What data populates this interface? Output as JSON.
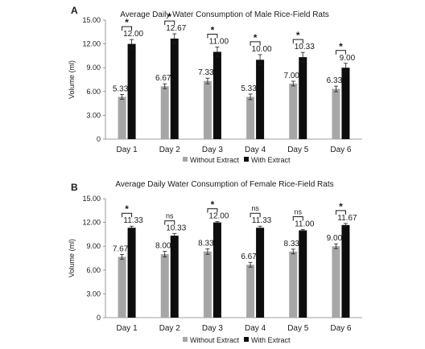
{
  "colors": {
    "without_extract": "#a6a6a6",
    "with_extract": "#0d0d0d",
    "axis": "#808080",
    "text": "#1a1a1a"
  },
  "chart_data": [
    {
      "panel_label": "A",
      "type": "bar",
      "title": "Average Daily Water Consumption of Male Rice-Field Rats",
      "ylabel": "Volume (ml)",
      "xlabel": "",
      "ylim": [
        0,
        15
      ],
      "yticks": [
        "0",
        "3.00",
        "6.00",
        "9.00",
        "12.00",
        "15.00"
      ],
      "ytick_values": [
        0,
        3,
        6,
        9,
        12,
        15
      ],
      "grid": false,
      "legend_position": "bottom",
      "categories": [
        "Day 1",
        "Day 2",
        "Day 3",
        "Day 4",
        "Day 5",
        "Day 6"
      ],
      "series": [
        {
          "name": "Without Extract",
          "values": [
            5.33,
            6.67,
            7.33,
            5.33,
            7.0,
            6.33
          ],
          "labels": [
            "5.33",
            "6.67",
            "7.33",
            "5.33",
            "7.00",
            "6.33"
          ],
          "error": [
            0.3,
            0.3,
            0.35,
            0.35,
            0.3,
            0.35
          ]
        },
        {
          "name": "With Extract",
          "values": [
            12.0,
            12.67,
            11.0,
            10.0,
            10.33,
            9.0
          ],
          "labels": [
            "12.00",
            "12.67",
            "11.00",
            "10.00",
            "10.33",
            "9.00"
          ],
          "error": [
            0.55,
            0.6,
            0.6,
            0.65,
            0.6,
            0.55
          ]
        }
      ],
      "significance": [
        "*",
        "*",
        "*",
        "*",
        "*",
        "*"
      ]
    },
    {
      "panel_label": "B",
      "type": "bar",
      "title": "Average Daily Water Consumption of Female Rice-Field Rats",
      "ylabel": "Volume (ml)",
      "xlabel": "",
      "ylim": [
        0,
        15
      ],
      "yticks": [
        "0",
        "3.00",
        "6.00",
        "9.00",
        "12.00",
        "15.00"
      ],
      "ytick_values": [
        0,
        3,
        6,
        9,
        12,
        15
      ],
      "grid": false,
      "legend_position": "bottom",
      "categories": [
        "Day 1",
        "Day 2",
        "Day 3",
        "Day 4",
        "Day 5",
        "Day 6"
      ],
      "series": [
        {
          "name": "Without Extract",
          "values": [
            7.67,
            8.0,
            8.33,
            6.67,
            8.33,
            9.0
          ],
          "labels": [
            "7.67",
            "8.00",
            "8.33",
            "6.67",
            "8.33",
            "9.00"
          ],
          "error": [
            0.3,
            0.35,
            0.35,
            0.3,
            0.3,
            0.3
          ]
        },
        {
          "name": "With Extract",
          "values": [
            11.33,
            10.33,
            12.0,
            11.33,
            11.0,
            11.67
          ],
          "labels": [
            "11.33",
            "10.33",
            "12.00",
            "11.33",
            "11.00",
            "11.67"
          ],
          "error": [
            0.2,
            0.25,
            0.1,
            0.2,
            0.1,
            0.2
          ]
        }
      ],
      "significance": [
        "*",
        "ns",
        "*",
        "ns",
        "ns",
        "*"
      ]
    }
  ]
}
